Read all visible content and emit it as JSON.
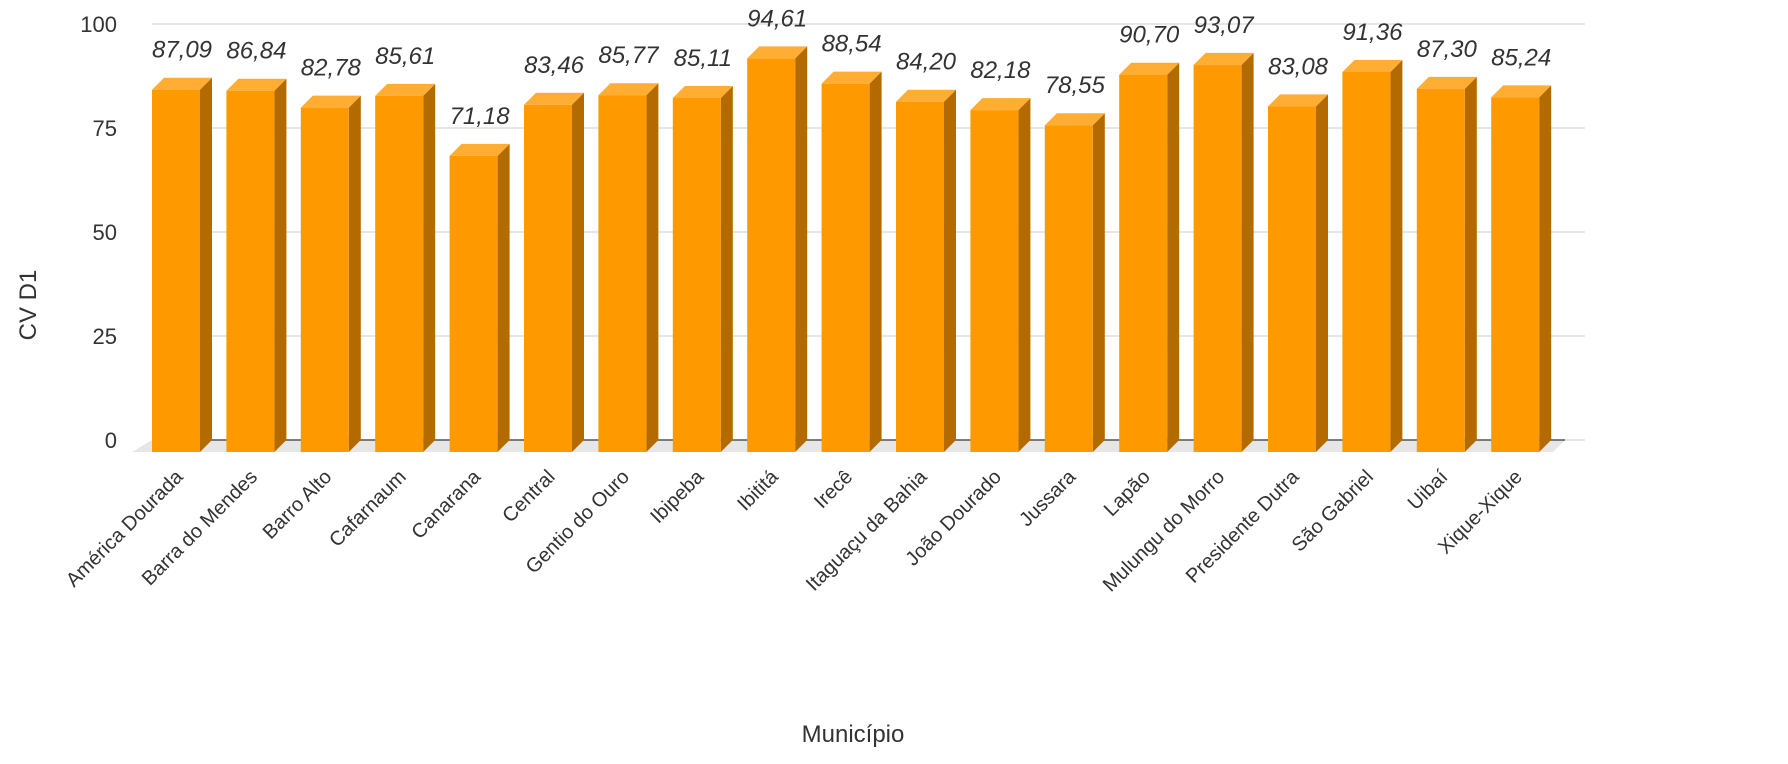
{
  "chart_data": {
    "type": "bar",
    "style": "3d",
    "xlabel": "Município",
    "ylabel": "CV D1",
    "ylim": [
      0,
      100
    ],
    "yticks": [
      "0",
      "25",
      "50",
      "75",
      "100"
    ],
    "grid": true,
    "legend": "none",
    "colors": {
      "bar_front": "#FF9900",
      "bar_side": "#B36B00",
      "bar_top": "#FFAD33",
      "floor": "#E6E6E6",
      "gridline": "#CCCCCC"
    },
    "categories": [
      "América Dourada",
      "Barra do Mendes",
      "Barro Alto",
      "Cafarnaum",
      "Canarana",
      "Central",
      "Gentio do Ouro",
      "Ibipeba",
      "Ibititá",
      "Irecê",
      "Itaguaçu da Bahia",
      "João Dourado",
      "Jussara",
      "Lapão",
      "Mulungu do Morro",
      "Presidente Dutra",
      "São Gabriel",
      "Uibaí",
      "Xique-Xique"
    ],
    "values": [
      87.09,
      86.84,
      82.78,
      85.61,
      71.18,
      83.46,
      85.77,
      85.11,
      94.61,
      88.54,
      84.2,
      82.18,
      78.55,
      90.7,
      93.07,
      83.08,
      91.36,
      87.3,
      85.24
    ],
    "data_labels": [
      "87,09",
      "86,84",
      "82,78",
      "85,61",
      "71,18",
      "83,46",
      "85,77",
      "85,11",
      "94,61",
      "88,54",
      "84,20",
      "82,18",
      "78,55",
      "90,70",
      "93,07",
      "83,08",
      "91,36",
      "87,30",
      "85,24"
    ]
  }
}
